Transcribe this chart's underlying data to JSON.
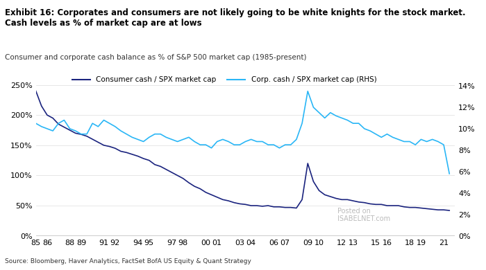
{
  "title_bold": "Exhibit 16: Corporates and consumers are not likely going to be white knights for the stock market.\nCash levels as % of market cap are at lows",
  "title_sub": "Consumer and corporate cash balance as % of S&P 500 market cap (1985-present)",
  "source": "Source: Bloomberg, Haver Analytics, FactSet BofA US Equity & Quant Strategy",
  "legend_consumer": "Consumer cash / SPX market cap",
  "legend_corp": "Corp. cash / SPX market cap (RHS)",
  "consumer_color": "#1a237e",
  "corp_color": "#29b6f6",
  "xlim": [
    1985,
    2022
  ],
  "ylim_left": [
    0,
    275
  ],
  "ylim_right": [
    0,
    15.5
  ],
  "yticks_left": [
    0,
    50,
    100,
    150,
    200,
    250
  ],
  "yticks_right": [
    0,
    2,
    4,
    6,
    8,
    10,
    12,
    14
  ],
  "xtick_labels": [
    "85",
    "86",
    "88",
    "89",
    "91",
    "92",
    "94",
    "95",
    "97",
    "98",
    "00",
    "01",
    "03",
    "04",
    "06",
    "07",
    "09",
    "10",
    "12",
    "13",
    "15",
    "16",
    "18",
    "19",
    "21"
  ],
  "xtick_positions": [
    1985,
    1986,
    1988,
    1989,
    1991,
    1992,
    1994,
    1995,
    1997,
    1998,
    2000,
    2001,
    2003,
    2004,
    2006,
    2007,
    2009,
    2010,
    2012,
    2013,
    2015,
    2016,
    2018,
    2019,
    2021
  ],
  "watermark": "Posted on\nISABELNET.com",
  "background_color": "#ffffff",
  "consumer_x": [
    1985.0,
    1985.5,
    1986.0,
    1986.5,
    1987.0,
    1987.5,
    1988.0,
    1988.5,
    1989.0,
    1989.5,
    1990.0,
    1990.5,
    1991.0,
    1991.5,
    1992.0,
    1992.5,
    1993.0,
    1993.5,
    1994.0,
    1994.5,
    1995.0,
    1995.5,
    1996.0,
    1996.5,
    1997.0,
    1997.5,
    1998.0,
    1998.5,
    1999.0,
    1999.5,
    2000.0,
    2000.5,
    2001.0,
    2001.5,
    2002.0,
    2002.5,
    2003.0,
    2003.5,
    2004.0,
    2004.5,
    2005.0,
    2005.5,
    2006.0,
    2006.5,
    2007.0,
    2007.5,
    2008.0,
    2008.5,
    2009.0,
    2009.5,
    2010.0,
    2010.5,
    2011.0,
    2011.5,
    2012.0,
    2012.5,
    2013.0,
    2013.5,
    2014.0,
    2014.5,
    2015.0,
    2015.5,
    2016.0,
    2016.5,
    2017.0,
    2017.5,
    2018.0,
    2018.5,
    2019.0,
    2019.5,
    2020.0,
    2020.5,
    2021.0,
    2021.5
  ],
  "consumer_y": [
    240,
    215,
    200,
    195,
    185,
    180,
    175,
    170,
    168,
    165,
    160,
    155,
    150,
    148,
    145,
    140,
    138,
    135,
    132,
    128,
    125,
    118,
    115,
    110,
    105,
    100,
    95,
    88,
    82,
    78,
    72,
    68,
    64,
    60,
    58,
    55,
    53,
    52,
    50,
    50,
    49,
    50,
    48,
    48,
    47,
    47,
    46,
    60,
    120,
    90,
    75,
    68,
    65,
    62,
    60,
    60,
    58,
    56,
    55,
    53,
    52,
    52,
    50,
    50,
    50,
    48,
    47,
    47,
    46,
    45,
    44,
    43,
    43,
    42
  ],
  "corp_x": [
    1985.0,
    1985.5,
    1986.0,
    1986.5,
    1987.0,
    1987.5,
    1988.0,
    1988.5,
    1989.0,
    1989.5,
    1990.0,
    1990.5,
    1991.0,
    1991.5,
    1992.0,
    1992.5,
    1993.0,
    1993.5,
    1994.0,
    1994.5,
    1995.0,
    1995.5,
    1996.0,
    1996.5,
    1997.0,
    1997.5,
    1998.0,
    1998.5,
    1999.0,
    1999.5,
    2000.0,
    2000.5,
    2001.0,
    2001.5,
    2002.0,
    2002.5,
    2003.0,
    2003.5,
    2004.0,
    2004.5,
    2005.0,
    2005.5,
    2006.0,
    2006.5,
    2007.0,
    2007.5,
    2008.0,
    2008.5,
    2009.0,
    2009.5,
    2010.0,
    2010.5,
    2011.0,
    2011.5,
    2012.0,
    2012.5,
    2013.0,
    2013.5,
    2014.0,
    2014.5,
    2015.0,
    2015.5,
    2016.0,
    2016.5,
    2017.0,
    2017.5,
    2018.0,
    2018.5,
    2019.0,
    2019.5,
    2020.0,
    2020.5,
    2021.0,
    2021.5
  ],
  "corp_y": [
    10.5,
    10.2,
    10.0,
    9.8,
    10.5,
    10.8,
    10.0,
    9.8,
    9.5,
    9.5,
    10.5,
    10.2,
    10.8,
    10.5,
    10.2,
    9.8,
    9.5,
    9.2,
    9.0,
    8.8,
    9.2,
    9.5,
    9.5,
    9.2,
    9.0,
    8.8,
    9.0,
    9.2,
    8.8,
    8.5,
    8.5,
    8.2,
    8.8,
    9.0,
    8.8,
    8.5,
    8.5,
    8.8,
    9.0,
    8.8,
    8.8,
    8.5,
    8.5,
    8.2,
    8.5,
    8.5,
    9.0,
    10.5,
    13.5,
    12.0,
    11.5,
    11.0,
    11.5,
    11.2,
    11.0,
    10.8,
    10.5,
    10.5,
    10.0,
    9.8,
    9.5,
    9.2,
    9.5,
    9.2,
    9.0,
    8.8,
    8.8,
    8.5,
    9.0,
    8.8,
    9.0,
    8.8,
    8.5,
    5.8
  ]
}
